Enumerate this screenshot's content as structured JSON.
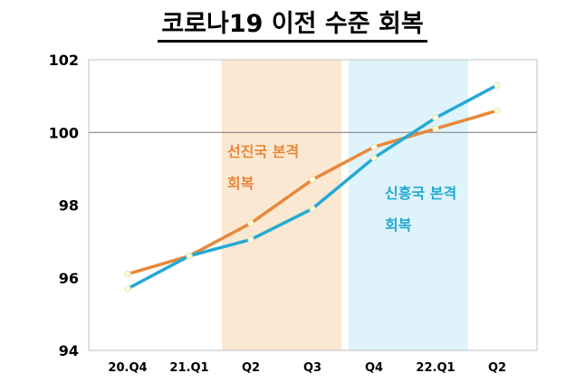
{
  "chart_data": {
    "type": "line",
    "title": "코로나19 이전 수준 회복",
    "xlabel": "",
    "ylabel": "",
    "categories": [
      "20.Q4",
      "21.Q1",
      "Q2",
      "Q3",
      "Q4",
      "22.Q1",
      "Q2"
    ],
    "ylim": [
      94,
      102
    ],
    "yticks": [
      "94",
      "96",
      "98",
      "100",
      "102"
    ],
    "reference_line": 100,
    "series": [
      {
        "color": "#e8883a",
        "values": [
          96.1,
          96.6,
          97.5,
          98.7,
          99.6,
          100.1,
          100.6
        ]
      },
      {
        "color": "#25a9d4",
        "values": [
          95.7,
          96.6,
          97.05,
          97.9,
          99.3,
          100.4,
          101.3
        ]
      }
    ],
    "bands": [
      {
        "from": 1.5,
        "to": 3.5,
        "color": "#fbe8d3",
        "label_lines": [
          "선진국 본격",
          "회복"
        ],
        "label_color": "#e8883a"
      },
      {
        "from": 3.5,
        "to": 5.5,
        "color": "#def3fb",
        "label_lines": [
          "신흥국 본격",
          "회복"
        ],
        "label_color": "#25a9d4"
      }
    ]
  }
}
